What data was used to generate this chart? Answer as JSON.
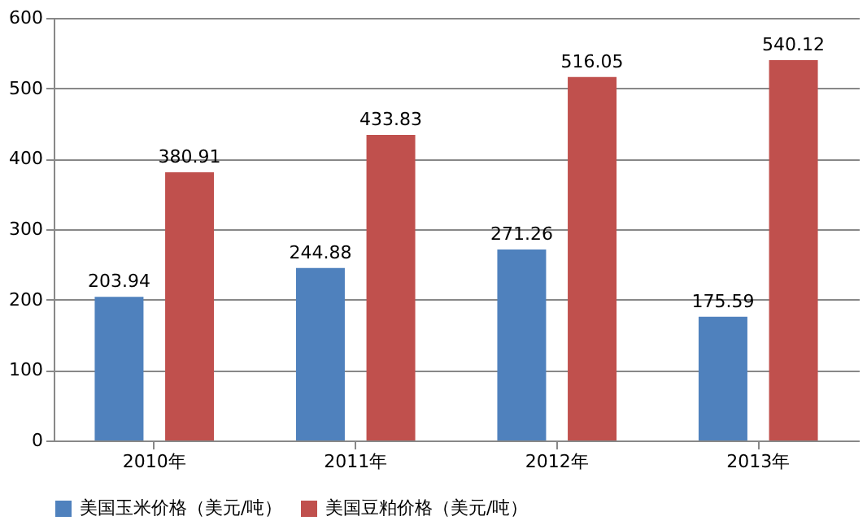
{
  "chart_data": {
    "type": "bar",
    "categories": [
      "2010年",
      "2011年",
      "2012年",
      "2013年"
    ],
    "series": [
      {
        "name": "美国玉米价格（美元/吨）",
        "color": "#4f81bd",
        "values": [
          203.94,
          244.88,
          271.26,
          175.59
        ]
      },
      {
        "name": "美国豆粕价格（美元/吨）",
        "color": "#c0504d",
        "values": [
          380.91,
          433.83,
          516.05,
          540.12
        ]
      }
    ],
    "ylim": [
      0,
      600
    ],
    "yticks": [
      0,
      100,
      200,
      300,
      400,
      500,
      600
    ],
    "grid": "y",
    "legend": "bottom",
    "data_labels": true
  }
}
